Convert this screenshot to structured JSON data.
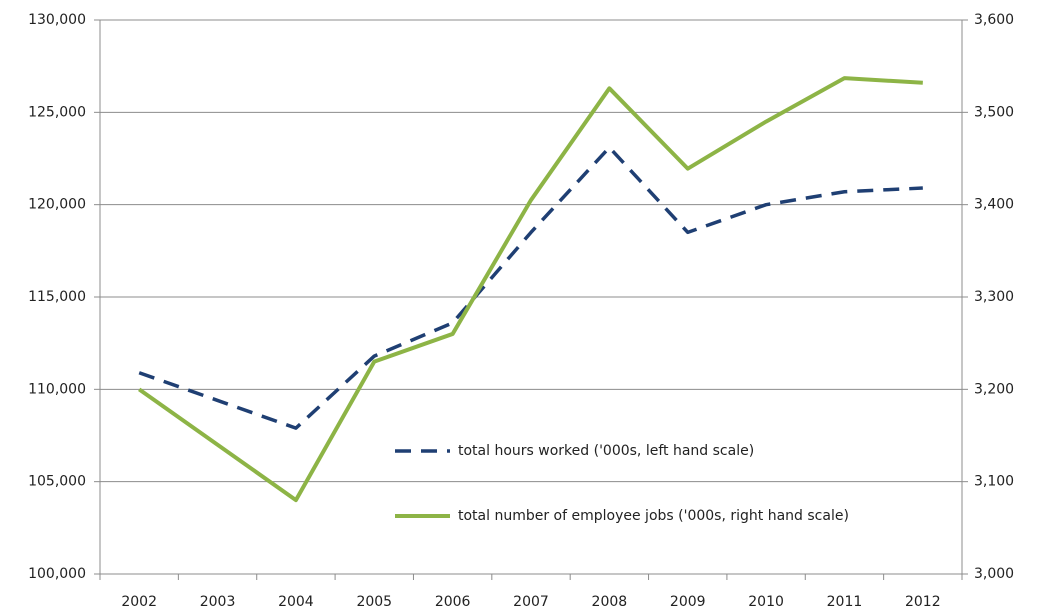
{
  "chart_data": {
    "type": "line",
    "categories": [
      "2002",
      "2003",
      "2004",
      "2005",
      "2006",
      "2007",
      "2008",
      "2009",
      "2010",
      "2011",
      "2012"
    ],
    "series": [
      {
        "name": "total hours worked ('000s, left hand scale)",
        "color": "#1f3f73",
        "dash": true,
        "values": [
          110900,
          109400,
          107900,
          111800,
          113600,
          118500,
          123100,
          118500,
          120000,
          120700,
          120900
        ]
      },
      {
        "name": "total number of employee jobs ('000s, right hand scale)",
        "color": "#8db446",
        "axis": "y2",
        "values": [
          3200,
          3140,
          3080,
          3230,
          3260,
          3405,
          3526,
          3439,
          3490,
          3537,
          3532
        ]
      }
    ],
    "ylim": [
      100000,
      130000
    ],
    "yticks": [
      {
        "value": 100000,
        "label": "100,000"
      },
      {
        "value": 105000,
        "label": "105,000"
      },
      {
        "value": 110000,
        "label": "110,000"
      },
      {
        "value": 115000,
        "label": "115,000"
      },
      {
        "value": 120000,
        "label": "120,000"
      },
      {
        "value": 125000,
        "label": "125,000"
      },
      {
        "value": 130000,
        "label": "130,000"
      }
    ],
    "y2lim": [
      3000,
      3600
    ],
    "y2ticks": [
      {
        "value": 3000,
        "label": "3,000"
      },
      {
        "value": 3100,
        "label": "3,100"
      },
      {
        "value": 3200,
        "label": "3,200"
      },
      {
        "value": 3300,
        "label": "3,300"
      },
      {
        "value": 3400,
        "label": "3,400"
      },
      {
        "value": 3500,
        "label": "3,500"
      },
      {
        "value": 3600,
        "label": "3,600"
      }
    ],
    "grid": true,
    "legend": "inside-bottom"
  }
}
